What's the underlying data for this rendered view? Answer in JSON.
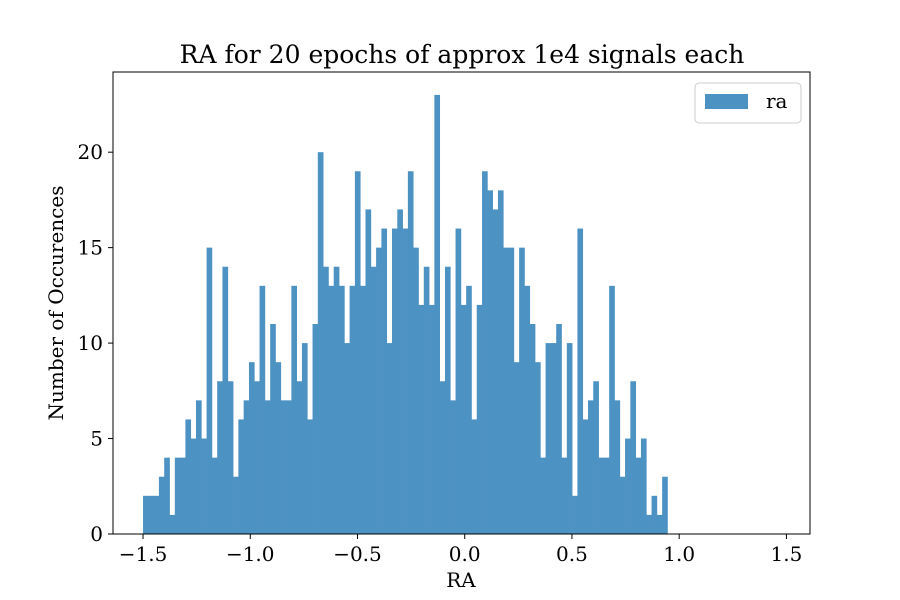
{
  "chart_data": {
    "type": "bar",
    "title": "RA for 20 epochs of approx 1e4 signals each",
    "xlabel": "RA",
    "ylabel": "Number of Occurences",
    "xlim": [
      -1.64,
      1.61
    ],
    "ylim": [
      0,
      24.2
    ],
    "bin_start": -1.5,
    "bin_width": 0.0247,
    "xticks": [
      -1.5,
      -1.0,
      -0.5,
      0.0,
      0.5,
      1.0,
      1.5
    ],
    "xtick_labels": [
      "−1.5",
      "−1.0",
      "−0.5",
      "0.0",
      "0.5",
      "1.0",
      "1.5"
    ],
    "yticks": [
      0,
      5,
      10,
      15,
      20
    ],
    "ytick_labels": [
      "0",
      "5",
      "10",
      "15",
      "20"
    ],
    "grid": false,
    "legend_position": "top-right",
    "series": [
      {
        "name": "ra",
        "color": "#4c92c3",
        "values": [
          2,
          2,
          2,
          3,
          4,
          1,
          4,
          4,
          6,
          5,
          7,
          5,
          15,
          4,
          8,
          14,
          8,
          3,
          6,
          7,
          9,
          8,
          13,
          7,
          11,
          9,
          7,
          7,
          13,
          8,
          10,
          6,
          11,
          20,
          14,
          13,
          14,
          13,
          10,
          13,
          19,
          13,
          17,
          14,
          15,
          16,
          10,
          16,
          17,
          16,
          19,
          15,
          12,
          14,
          12,
          23,
          8,
          14,
          7,
          16,
          12,
          13,
          6,
          12,
          19,
          18,
          17,
          18,
          15,
          15,
          9,
          15,
          13,
          11,
          9,
          4,
          10,
          10,
          11,
          4,
          10,
          2,
          16,
          6,
          7,
          8,
          4,
          4,
          13,
          7,
          3,
          5,
          8,
          4,
          5,
          1,
          2,
          1,
          3,
          0
        ]
      }
    ]
  }
}
